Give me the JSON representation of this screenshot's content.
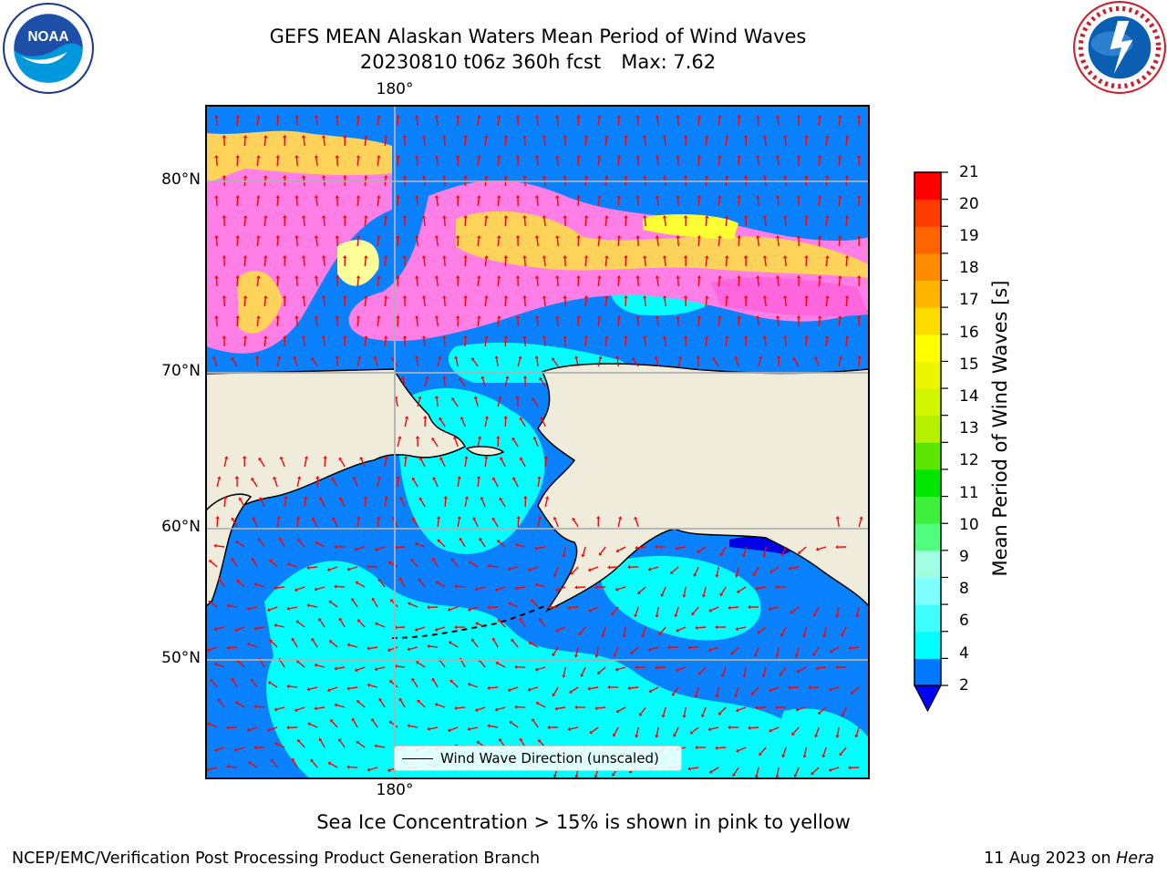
{
  "title": {
    "line1": "GEFS MEAN Alaskan Waters Mean Period of Wind Waves",
    "line2_run": "20230810 t06z 360h fcst",
    "line2_max": "Max: 7.62"
  },
  "axes": {
    "lon_top": "180°",
    "lon_bottom": "180°",
    "lat_labels": [
      "80°N",
      "70°N",
      "60°N",
      "50°N"
    ]
  },
  "legend": {
    "label": "Wind Wave Direction (unscaled)"
  },
  "colorbar": {
    "label": "Mean Period of Wind Waves [s]",
    "ticks": [
      "21",
      "20",
      "19",
      "18",
      "17",
      "16",
      "15",
      "14",
      "13",
      "12",
      "11",
      "10",
      "9",
      "8",
      "6",
      "4",
      "2"
    ],
    "colors": [
      "#0000ff",
      "#0078ff",
      "#00ffff",
      "#40ffff",
      "#7fffff",
      "#a0ffe0",
      "#50ff80",
      "#3cf03c",
      "#00e600",
      "#5ae600",
      "#b4f000",
      "#d2f500",
      "#eef500",
      "#ffff00",
      "#ffdc00",
      "#ffb400",
      "#ff8c00",
      "#ff6400",
      "#ff3c00",
      "#ff0000"
    ]
  },
  "map": {
    "colors": {
      "land": "#efecdc",
      "ocean_low": "#0a82ff",
      "ocean_mid": "#00ffff",
      "ice_pink": "#ff7fe6",
      "ice_orange": "#ffd35a",
      "ice_yellow": "#ffff00",
      "arrows": "#ff0000",
      "grid": "#b0b0b0"
    }
  },
  "caption": "Sea Ice Concentration > 15% is shown in pink to yellow",
  "footer": {
    "left": "NCEP/EMC/Verification Post Processing Product Generation Branch",
    "right_date": "11 Aug 2023 on ",
    "right_host": "Hera"
  }
}
